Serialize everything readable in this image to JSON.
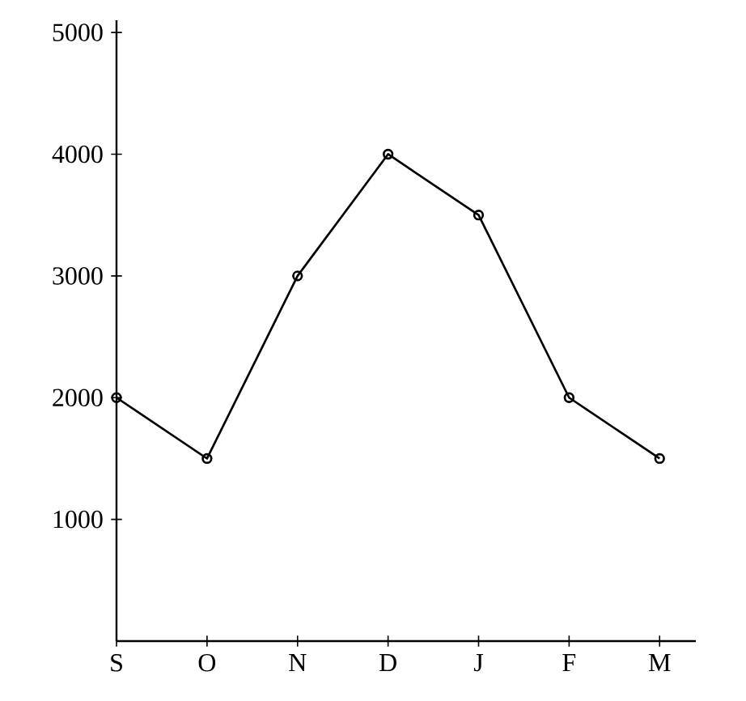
{
  "chart_data": {
    "type": "line",
    "categories": [
      "S",
      "O",
      "N",
      "D",
      "J",
      "F",
      "M"
    ],
    "values": [
      2000,
      1500,
      3000,
      4000,
      3500,
      2000,
      1500
    ],
    "color": "#000000",
    "ylim": [
      0,
      5100
    ],
    "yticks": [
      1000,
      2000,
      3000,
      4000,
      5000
    ],
    "marker": "circle",
    "line_style": "solid"
  }
}
